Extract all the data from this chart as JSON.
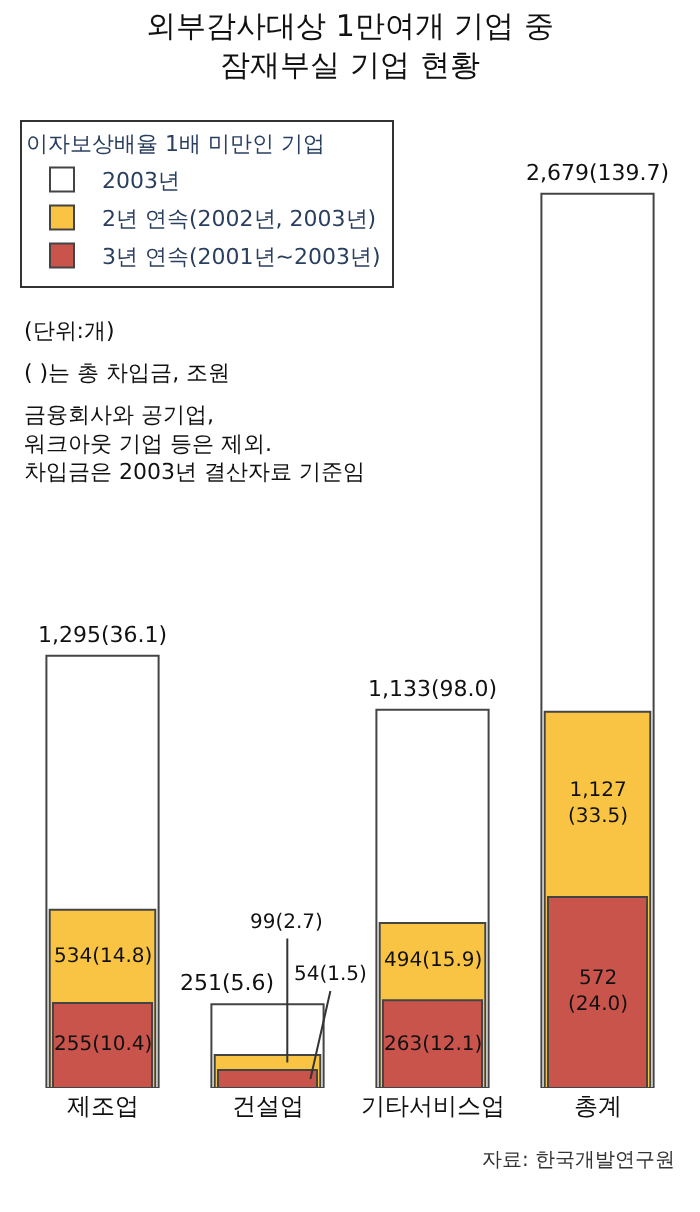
{
  "chart_data": {
    "type": "bar",
    "title": "외부감사대상 1만여개 기업 중\n잠재부실 기업 현황",
    "categories": [
      "제조업",
      "건설업",
      "기타서비스업",
      "총계"
    ],
    "legend_title": "이자보상배율 1배 미만인 기업",
    "series": [
      {
        "name": "2003년",
        "color": "#ffffff",
        "values": [
          1295,
          251,
          1133,
          2679
        ],
        "value_labels": [
          "1,295(36.1)",
          "251(5.6)",
          "1,133(98.0)",
          "2,679(139.7)"
        ]
      },
      {
        "name": "2년 연속(2002년, 2003년)",
        "color": "#f9c443",
        "values": [
          534,
          99,
          494,
          1127
        ],
        "value_labels": [
          "534(14.8)",
          "99(2.7)",
          "494(15.9)",
          "1,127\n(33.5)"
        ]
      },
      {
        "name": "3년 연속(2001년~2003년)",
        "color": "#c9544b",
        "values": [
          255,
          54,
          263,
          572
        ],
        "value_labels": [
          "255(10.4)",
          "54(1.5)",
          "263(12.1)",
          "572\n(24.0)"
        ]
      }
    ],
    "annotations": [
      "(단위:개)",
      "( )는 총 차입금, 조원",
      "금융회사와 공기업,\n워크아웃 기업 등은 제외.\n차입금은 2003년 결산자료 기준임",
      "자료: 한국개발연구원"
    ],
    "ylim": [
      0,
      2900
    ],
    "tick_labels": "x",
    "legend": "top left"
  }
}
